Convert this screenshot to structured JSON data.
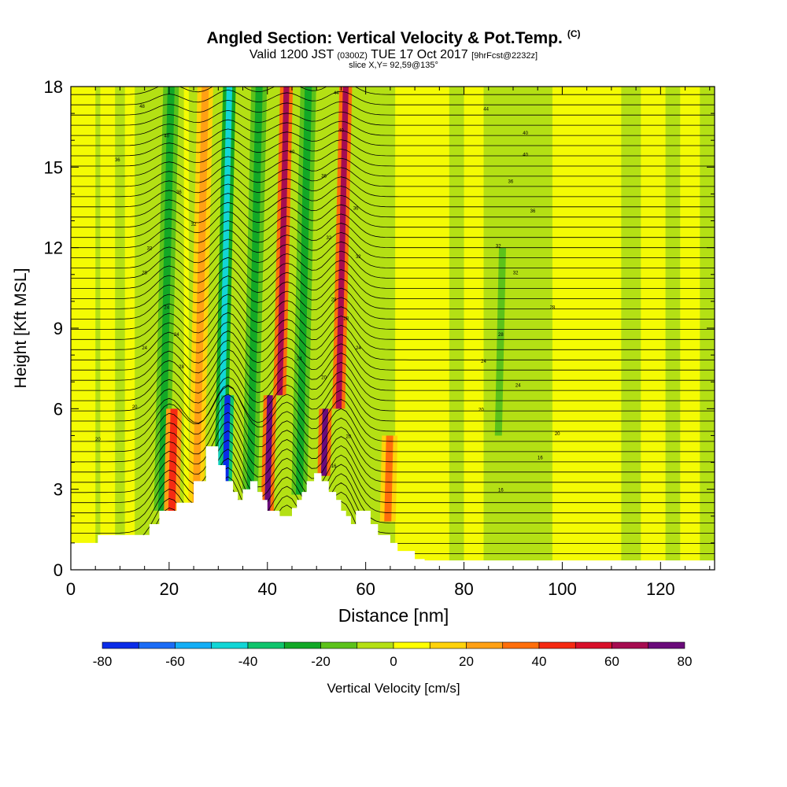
{
  "title": {
    "main": "Angled Section: Vertical Velocity & Pot.Temp.",
    "units_tag": "(C)",
    "valid_a": "Valid 1200 JST",
    "valid_z": "(0300Z)",
    "valid_b": "TUE 17 Oct 2017",
    "fcst": "[9hrFcst@2232z]",
    "slice": "slice X,Y= 92,59@135°"
  },
  "chart_data": {
    "type": "heatmap",
    "xlabel": "Distance [nm]",
    "ylabel": "Height [Kft MSL]",
    "xlim": [
      0,
      131
    ],
    "ylim": [
      0,
      18
    ],
    "x_ticks": [
      0,
      20,
      40,
      60,
      80,
      100,
      120
    ],
    "y_ticks": [
      0,
      3,
      6,
      9,
      12,
      15,
      18
    ],
    "colorbar": {
      "label": "Vertical Velocity [cm/s]",
      "ticks": [
        -80,
        -60,
        -40,
        -20,
        0,
        20,
        40,
        60,
        80
      ],
      "bins": [
        -80,
        -70,
        -60,
        -50,
        -40,
        -30,
        -20,
        -10,
        0,
        10,
        20,
        30,
        40,
        50,
        60,
        70,
        80
      ],
      "colors": [
        "#0a2ce8",
        "#1a6cf6",
        "#14aef6",
        "#12d6d6",
        "#10c46c",
        "#12a826",
        "#5cc21a",
        "#b4e014",
        "#ffff00",
        "#ffd20a",
        "#ffa014",
        "#ff6e0a",
        "#f52a12",
        "#d8102a",
        "#a60c50",
        "#6a0a7a"
      ]
    },
    "background_value": "-10 to 0",
    "velocity_bands": [
      {
        "x": 18.5,
        "z_bottom": 2.2,
        "z_top": 18,
        "value": -30
      },
      {
        "x": 20.5,
        "z_bottom": 1.8,
        "z_top": 6,
        "value": 40
      },
      {
        "x": 25.5,
        "z_bottom": 2.5,
        "z_top": 18,
        "value": 20
      },
      {
        "x": 30.5,
        "z_bottom": 3.3,
        "z_top": 18,
        "value": -50
      },
      {
        "x": 31.5,
        "z_bottom": 3.3,
        "z_top": 6.5,
        "value": -80
      },
      {
        "x": 36.5,
        "z_bottom": 2.9,
        "z_top": 18,
        "value": -30
      },
      {
        "x": 40.0,
        "z_bottom": 2.2,
        "z_top": 6.5,
        "value": 70
      },
      {
        "x": 42.5,
        "z_bottom": 6.5,
        "z_top": 18,
        "value": 60
      },
      {
        "x": 46.5,
        "z_bottom": 2.8,
        "z_top": 18,
        "value": -30
      },
      {
        "x": 51.5,
        "z_bottom": 3.5,
        "z_top": 6,
        "value": 70
      },
      {
        "x": 54.5,
        "z_bottom": 6,
        "z_top": 18,
        "value": 60
      },
      {
        "x": 64.5,
        "z_bottom": 1.8,
        "z_top": 5,
        "value": 30
      },
      {
        "x": 87.0,
        "z_bottom": 5,
        "z_top": 12,
        "value": -20
      }
    ],
    "terrain": [
      [
        0,
        1.0
      ],
      [
        5.5,
        1.0
      ],
      [
        5.5,
        1.3
      ],
      [
        13.5,
        1.3
      ],
      [
        13.5,
        1.3
      ],
      [
        16,
        1.3
      ],
      [
        16,
        1.7
      ],
      [
        18,
        1.7
      ],
      [
        18,
        2.2
      ],
      [
        21.5,
        2.2
      ],
      [
        21.5,
        2.5
      ],
      [
        25,
        2.5
      ],
      [
        25,
        3.3
      ],
      [
        27.5,
        3.3
      ],
      [
        27.5,
        4.6
      ],
      [
        30,
        4.6
      ],
      [
        30,
        3.9
      ],
      [
        31.5,
        3.9
      ],
      [
        31.5,
        3.3
      ],
      [
        33,
        3.3
      ],
      [
        33,
        2.9
      ],
      [
        34,
        2.9
      ],
      [
        34,
        2.6
      ],
      [
        35,
        2.6
      ],
      [
        35,
        3.0
      ],
      [
        36.5,
        3.0
      ],
      [
        36.5,
        3.3
      ],
      [
        38,
        3.3
      ],
      [
        38,
        2.9
      ],
      [
        39,
        2.9
      ],
      [
        39,
        2.6
      ],
      [
        40,
        2.6
      ],
      [
        40,
        2.2
      ],
      [
        42.5,
        2.2
      ],
      [
        42.5,
        2.0
      ],
      [
        45,
        2.0
      ],
      [
        45,
        2.3
      ],
      [
        46,
        2.3
      ],
      [
        46,
        2.6
      ],
      [
        47,
        2.6
      ],
      [
        47,
        2.9
      ],
      [
        48,
        2.9
      ],
      [
        48,
        3.3
      ],
      [
        49.5,
        3.3
      ],
      [
        49.5,
        3.6
      ],
      [
        51,
        3.6
      ],
      [
        51,
        3.3
      ],
      [
        52.5,
        3.3
      ],
      [
        52.5,
        2.9
      ],
      [
        54,
        2.9
      ],
      [
        54,
        2.6
      ],
      [
        55,
        2.6
      ],
      [
        55,
        2.2
      ],
      [
        56,
        2.2
      ],
      [
        56,
        2.0
      ],
      [
        57,
        2.0
      ],
      [
        57,
        1.7
      ],
      [
        58,
        1.7
      ],
      [
        58,
        2.2
      ],
      [
        61,
        2.2
      ],
      [
        61,
        1.7
      ],
      [
        62.5,
        1.7
      ],
      [
        62.5,
        1.3
      ],
      [
        65,
        1.3
      ],
      [
        65,
        1.0
      ],
      [
        66.5,
        1.0
      ],
      [
        66.5,
        0.7
      ],
      [
        70,
        0.7
      ],
      [
        70,
        0.4
      ],
      [
        72,
        0.4
      ],
      [
        72,
        0.35
      ],
      [
        131,
        0.35
      ]
    ],
    "isentrope_labels": [
      {
        "x": 14.5,
        "z": 17.3,
        "text": "48"
      },
      {
        "x": 19.5,
        "z": 16.2,
        "text": "40"
      },
      {
        "x": 9.5,
        "z": 15.3,
        "text": "36"
      },
      {
        "x": 22,
        "z": 14.1,
        "text": "36"
      },
      {
        "x": 25,
        "z": 12.9,
        "text": "32"
      },
      {
        "x": 16,
        "z": 12.0,
        "text": "32"
      },
      {
        "x": 15,
        "z": 11.1,
        "text": "28"
      },
      {
        "x": 19.5,
        "z": 9.8,
        "text": "24"
      },
      {
        "x": 21.5,
        "z": 8.8,
        "text": "24"
      },
      {
        "x": 15,
        "z": 8.3,
        "text": "24"
      },
      {
        "x": 22.5,
        "z": 7.6,
        "text": "28"
      },
      {
        "x": 13,
        "z": 6.1,
        "text": "20"
      },
      {
        "x": 5.5,
        "z": 4.9,
        "text": "20"
      },
      {
        "x": 54,
        "z": 17.8,
        "text": "44"
      },
      {
        "x": 55,
        "z": 16.4,
        "text": "40"
      },
      {
        "x": 45,
        "z": 15.6,
        "text": "40"
      },
      {
        "x": 51.5,
        "z": 14.7,
        "text": "36"
      },
      {
        "x": 58,
        "z": 13.5,
        "text": "36"
      },
      {
        "x": 52.5,
        "z": 12.4,
        "text": "32"
      },
      {
        "x": 58.5,
        "z": 11.7,
        "text": "32"
      },
      {
        "x": 53.5,
        "z": 10.1,
        "text": "28"
      },
      {
        "x": 56,
        "z": 9.4,
        "text": "28"
      },
      {
        "x": 58.5,
        "z": 8.3,
        "text": "24"
      },
      {
        "x": 46.5,
        "z": 7.9,
        "text": "24"
      },
      {
        "x": 51.5,
        "z": 7.2,
        "text": "20"
      },
      {
        "x": 56.5,
        "z": 5.0,
        "text": "20"
      },
      {
        "x": 53.5,
        "z": 3.9,
        "text": "16"
      },
      {
        "x": 84.5,
        "z": 17.2,
        "text": "44"
      },
      {
        "x": 92.5,
        "z": 16.3,
        "text": "40"
      },
      {
        "x": 92.5,
        "z": 15.5,
        "text": "40"
      },
      {
        "x": 89.5,
        "z": 14.5,
        "text": "36"
      },
      {
        "x": 94,
        "z": 13.4,
        "text": "36"
      },
      {
        "x": 87,
        "z": 12.1,
        "text": "32"
      },
      {
        "x": 90.5,
        "z": 11.1,
        "text": "32"
      },
      {
        "x": 98,
        "z": 9.8,
        "text": "28"
      },
      {
        "x": 87.5,
        "z": 8.8,
        "text": "28"
      },
      {
        "x": 84,
        "z": 7.8,
        "text": "24"
      },
      {
        "x": 91,
        "z": 6.9,
        "text": "24"
      },
      {
        "x": 83.5,
        "z": 6.0,
        "text": "20"
      },
      {
        "x": 99,
        "z": 5.1,
        "text": "20"
      },
      {
        "x": 95.5,
        "z": 4.2,
        "text": "16"
      },
      {
        "x": 87.5,
        "z": 3.0,
        "text": "16"
      }
    ]
  }
}
